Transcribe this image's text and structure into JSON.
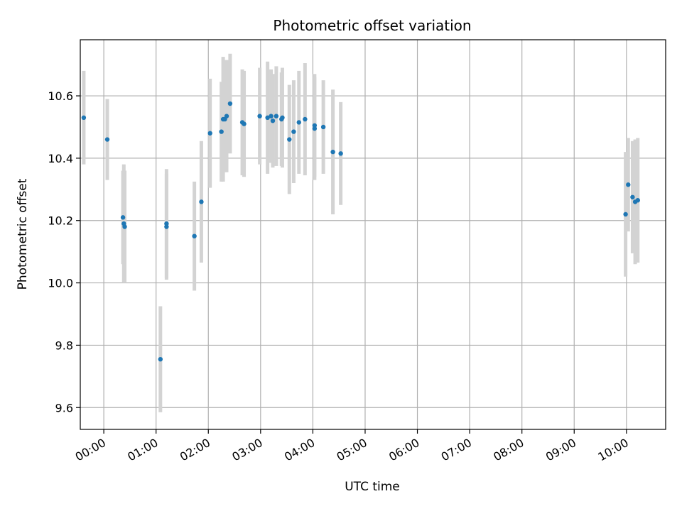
{
  "chart_data": {
    "type": "scatter",
    "title": "Photometric offset variation",
    "xlabel": "UTC time",
    "ylabel": "Photometric offset",
    "x_ticks": [
      "00:00",
      "01:00",
      "02:00",
      "03:00",
      "04:00",
      "05:00",
      "06:00",
      "07:00",
      "08:00",
      "09:00",
      "10:00"
    ],
    "y_ticks": [
      9.6,
      9.8,
      10.0,
      10.2,
      10.4,
      10.6
    ],
    "y_tick_labels": [
      "9.6",
      "9.8",
      "10.0",
      "10.2",
      "10.4",
      "10.6"
    ],
    "xlim": [
      "23:33",
      "10:45"
    ],
    "ylim": [
      9.53,
      10.78
    ],
    "grid": true,
    "colors": {
      "points": "#1f77b4",
      "errorbars": "#d3d3d3",
      "grid": "#b0b0b0"
    },
    "points": [
      {
        "x": "23:37",
        "y": 10.53,
        "err": 0.15
      },
      {
        "x": "00:04",
        "y": 10.46,
        "err": 0.13
      },
      {
        "x": "00:22",
        "y": 10.21,
        "err": 0.15
      },
      {
        "x": "00:23",
        "y": 10.19,
        "err": 0.19
      },
      {
        "x": "00:24",
        "y": 10.18,
        "err": 0.18
      },
      {
        "x": "01:05",
        "y": 9.755,
        "err": 0.17
      },
      {
        "x": "01:12",
        "y": 10.19,
        "err": 0.175
      },
      {
        "x": "01:12",
        "y": 10.18,
        "err": 0.17
      },
      {
        "x": "01:44",
        "y": 10.15,
        "err": 0.175
      },
      {
        "x": "01:52",
        "y": 10.26,
        "err": 0.195
      },
      {
        "x": "02:02",
        "y": 10.48,
        "err": 0.175
      },
      {
        "x": "02:15",
        "y": 10.485,
        "err": 0.16
      },
      {
        "x": "02:17",
        "y": 10.525,
        "err": 0.2
      },
      {
        "x": "02:19",
        "y": 10.525,
        "err": 0.17
      },
      {
        "x": "02:21",
        "y": 10.535,
        "err": 0.18
      },
      {
        "x": "02:25",
        "y": 10.575,
        "err": 0.16
      },
      {
        "x": "02:39",
        "y": 10.515,
        "err": 0.17
      },
      {
        "x": "02:41",
        "y": 10.51,
        "err": 0.17
      },
      {
        "x": "02:59",
        "y": 10.535,
        "err": 0.155
      },
      {
        "x": "03:08",
        "y": 10.53,
        "err": 0.18
      },
      {
        "x": "03:12",
        "y": 10.535,
        "err": 0.15
      },
      {
        "x": "03:14",
        "y": 10.52,
        "err": 0.15
      },
      {
        "x": "03:18",
        "y": 10.535,
        "err": 0.16
      },
      {
        "x": "03:24",
        "y": 10.525,
        "err": 0.15
      },
      {
        "x": "03:25",
        "y": 10.53,
        "err": 0.16
      },
      {
        "x": "03:33",
        "y": 10.46,
        "err": 0.175
      },
      {
        "x": "03:38",
        "y": 10.485,
        "err": 0.165
      },
      {
        "x": "03:44",
        "y": 10.515,
        "err": 0.165
      },
      {
        "x": "03:51",
        "y": 10.525,
        "err": 0.18
      },
      {
        "x": "04:02",
        "y": 10.505,
        "err": 0.165
      },
      {
        "x": "04:02",
        "y": 10.495,
        "err": 0.165
      },
      {
        "x": "04:12",
        "y": 10.5,
        "err": 0.15
      },
      {
        "x": "04:23",
        "y": 10.42,
        "err": 0.2
      },
      {
        "x": "04:32",
        "y": 10.415,
        "err": 0.165
      },
      {
        "x": "09:59",
        "y": 10.22,
        "err": 0.2
      },
      {
        "x": "10:02",
        "y": 10.315,
        "err": 0.15
      },
      {
        "x": "10:07",
        "y": 10.275,
        "err": 0.18
      },
      {
        "x": "10:10",
        "y": 10.26,
        "err": 0.2
      },
      {
        "x": "10:13",
        "y": 10.265,
        "err": 0.2
      }
    ]
  }
}
